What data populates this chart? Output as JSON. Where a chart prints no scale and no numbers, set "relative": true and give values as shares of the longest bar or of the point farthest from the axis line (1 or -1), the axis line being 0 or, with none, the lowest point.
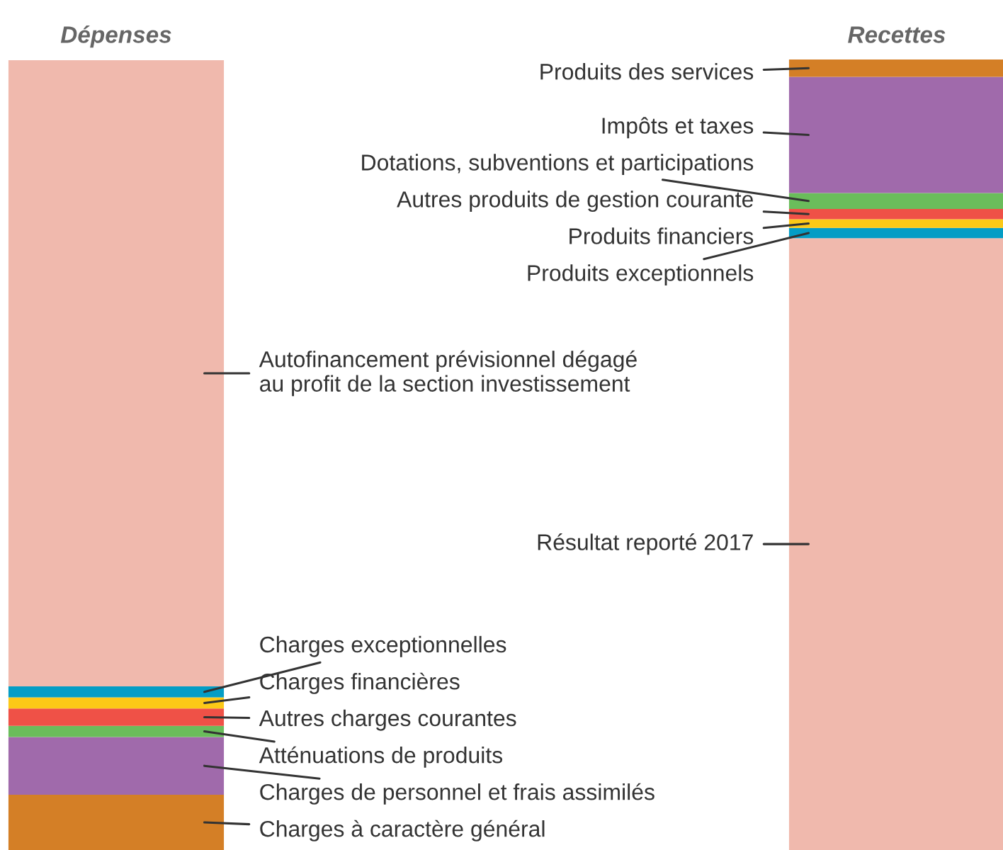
{
  "chart_data": {
    "type": "bar",
    "stacked": true,
    "relative": true,
    "categories": [
      "Dépenses",
      "Recettes"
    ],
    "series": [
      {
        "name": "Charges à caractère général",
        "color": "#d47f26",
        "values": [
          0.07,
          null
        ]
      },
      {
        "name": "Charges de personnel et frais assimilés",
        "color": "#a06aab",
        "values": [
          0.073,
          null
        ]
      },
      {
        "name": "Atténuations de produits",
        "color": "#6abd5b",
        "values": [
          0.014,
          null
        ]
      },
      {
        "name": "Autres charges courantes",
        "color": "#ef5147",
        "values": [
          0.022,
          null
        ]
      },
      {
        "name": "Charges financières",
        "color": "#fcc917",
        "values": [
          0.014,
          null
        ]
      },
      {
        "name": "Charges exceptionnelles",
        "color": "#049dc5",
        "values": [
          0.014,
          null
        ]
      },
      {
        "name": "Autofinancement prévisionnel dégagé\nau profit de la section investissement",
        "color": "#f0b9ad",
        "values": [
          0.792,
          null
        ]
      },
      {
        "name": "Résultat reporté 2017",
        "color": "#f0b9ad",
        "values": [
          null,
          0.774
        ]
      },
      {
        "name": "Produits exceptionnels",
        "color": "#049dc5",
        "values": [
          null,
          0.013
        ]
      },
      {
        "name": "Produits financiers",
        "color": "#fcc917",
        "values": [
          null,
          0.011
        ]
      },
      {
        "name": "Autres produits de gestion courante",
        "color": "#ef5147",
        "values": [
          null,
          0.013
        ]
      },
      {
        "name": "Dotations, subventions et participations",
        "color": "#6abd5b",
        "values": [
          null,
          0.02
        ]
      },
      {
        "name": "Impôts et taxes",
        "color": "#a06aab",
        "values": [
          null,
          0.147
        ]
      },
      {
        "name": "Produits des services",
        "color": "#d47f26",
        "values": [
          null,
          0.022
        ]
      }
    ]
  }
}
